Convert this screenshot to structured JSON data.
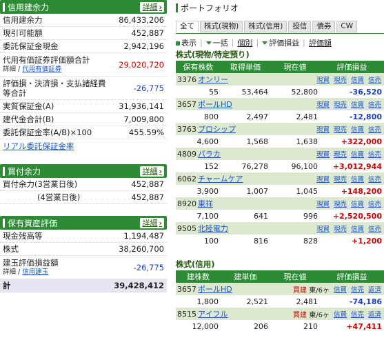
{
  "credit": {
    "title": "信用建余力",
    "more": "詳細",
    "rows": [
      {
        "label": "信用建余力",
        "value": "86,433,206"
      },
      {
        "label": "現引可能額",
        "value": "452,887"
      },
      {
        "label": "委託保証金現金",
        "value": "2,942,196"
      }
    ],
    "substitute": {
      "label": "代用有価証券評価額合計",
      "sub_prefix": "詳細 / ",
      "sub_link": "代用有価証券",
      "value": "29,020,720"
    },
    "pl": {
      "label": "評価損・決済損・支払諸経費等合計",
      "value": "-26,775"
    },
    "rows2": [
      {
        "label": "実質保証金(A)",
        "value": "31,936,141"
      },
      {
        "label": "建代金合計(B)",
        "value": "7,009,800"
      },
      {
        "label": "委託保証金率(A/B)×100",
        "value": "455.59%"
      }
    ],
    "realtime_link": "リアル委託保証金率"
  },
  "buying": {
    "title": "買付余力",
    "more": "詳細",
    "rows": [
      {
        "label": "買付余力(3営業日後)",
        "value": "452,887"
      },
      {
        "label": "(4営業日後)",
        "value": "452,887"
      }
    ]
  },
  "assets": {
    "title": "保有資産評価",
    "more": "詳細",
    "rows": [
      {
        "label": "現金残高等",
        "value": "1,194,487"
      },
      {
        "label": "株式",
        "value": "38,260,700"
      }
    ],
    "pl": {
      "label": "建玉評価損益額",
      "sub_prefix": "詳細 / ",
      "sub_link": "信用建玉",
      "value": "-26,775"
    },
    "total": {
      "label": "計",
      "value": "39,428,412"
    }
  },
  "portfolio": {
    "title": "ポートフォリオ",
    "tabs": [
      "全て",
      "株式(現物)",
      "株式(信用)",
      "投信",
      "債券",
      "CW"
    ],
    "controls": {
      "display": "表示",
      "bulk": "一括",
      "individual": "個別",
      "pl": "評価損益",
      "pl_link": "評価額"
    },
    "cash_section": {
      "title": "株式(現物/特定預り)",
      "headers": [
        "保有株数",
        "取得単価",
        "現在値",
        "評価損益"
      ],
      "actions": [
        "現買",
        "現売",
        "信買",
        "信売"
      ],
      "rows": [
        {
          "code": "3376",
          "name": "オンリー",
          "qty": "55",
          "cost": "53,464",
          "price": "52,800",
          "pl": "-36,520",
          "sign": "neg"
        },
        {
          "code": "3657",
          "name": "ポールHD",
          "qty": "800",
          "cost": "2,497",
          "price": "2,481",
          "pl": "-12,800",
          "sign": "neg"
        },
        {
          "code": "3763",
          "name": "プロシップ",
          "qty": "4,600",
          "cost": "1,568",
          "price": "1,638",
          "pl": "+322,000",
          "sign": "pos"
        },
        {
          "code": "4809",
          "name": "パラカ",
          "qty": "152",
          "cost": "76,278",
          "price": "96,100",
          "pl": "+3,012,944",
          "sign": "pos"
        },
        {
          "code": "6062",
          "name": "チャームケア",
          "qty": "3,900",
          "cost": "1,007",
          "price": "1,045",
          "pl": "+148,200",
          "sign": "pos"
        },
        {
          "code": "8920",
          "name": "東祥",
          "qty": "7,100",
          "cost": "641",
          "price": "996",
          "pl": "+2,520,500",
          "sign": "pos"
        },
        {
          "code": "9505",
          "name": "北陸電力",
          "qty": "100",
          "cost": "816",
          "price": "828",
          "pl": "+1,200",
          "sign": "pos"
        }
      ]
    },
    "margin_section": {
      "title": "株式(信用)",
      "headers": [
        "建株数",
        "建単価",
        "現在値",
        "評価損益"
      ],
      "actions": [
        "信買",
        "信売",
        "返済"
      ],
      "rows": [
        {
          "code": "3657",
          "name": "ポールHD",
          "side": "買建",
          "mkt": "東/6ヶ",
          "qty": "1,800",
          "cost": "2,521",
          "price": "2,481",
          "pl": "-74,186",
          "sign": "neg"
        },
        {
          "code": "8515",
          "name": "アイフル",
          "side": "買建",
          "mkt": "東/6ヶ",
          "qty": "12,000",
          "cost": "206",
          "price": "210",
          "pl": "+47,411",
          "sign": "pos"
        }
      ]
    }
  }
}
